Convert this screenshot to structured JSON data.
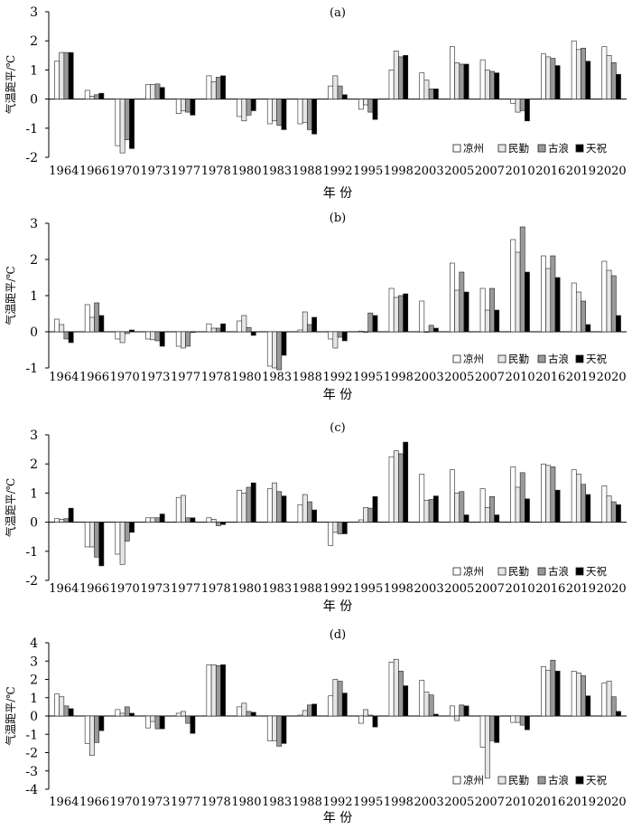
{
  "figure": {
    "xlabel": "年 份",
    "ylabel": "气温距平/℃"
  },
  "chart_data": [
    {
      "type": "bar",
      "title": "(a)",
      "xlabel": "年 份",
      "ylabel": "气温距平/℃",
      "ylim": [
        -2,
        3
      ],
      "yticks": [
        -2,
        -1,
        0,
        1,
        2,
        3
      ],
      "legend": "bottom-right",
      "categories": [
        "1964",
        "1966",
        "1970",
        "1973",
        "1977",
        "1978",
        "1980",
        "1983",
        "1988",
        "1992",
        "1995",
        "1998",
        "2003",
        "2005",
        "2007",
        "2010",
        "2016",
        "2019",
        "2020"
      ],
      "series": [
        {
          "name": "凉州",
          "fill": "#ffffff",
          "values": [
            1.3,
            0.3,
            -1.6,
            0.5,
            -0.5,
            0.8,
            -0.6,
            -0.85,
            -0.85,
            0.45,
            -0.35,
            1.0,
            0.9,
            1.8,
            1.35,
            -0.15,
            1.55,
            2.0,
            1.8
          ]
        },
        {
          "name": "民勤",
          "fill": "#e6e6e6",
          "values": [
            1.6,
            0.1,
            -1.85,
            0.5,
            -0.4,
            0.6,
            -0.75,
            -0.75,
            -0.8,
            0.8,
            -0.2,
            1.65,
            0.65,
            1.25,
            1.0,
            -0.45,
            1.45,
            1.7,
            1.5
          ]
        },
        {
          "name": "古浪",
          "fill": "#999999",
          "values": [
            1.6,
            0.15,
            -1.4,
            0.52,
            -0.45,
            0.75,
            -0.55,
            -0.9,
            -1.05,
            0.45,
            -0.45,
            1.45,
            0.35,
            1.2,
            0.95,
            -0.4,
            1.4,
            1.75,
            1.25
          ]
        },
        {
          "name": "天祝",
          "fill": "#000000",
          "values": [
            1.6,
            0.2,
            -1.7,
            0.4,
            -0.55,
            0.8,
            -0.4,
            -1.05,
            -1.2,
            0.15,
            -0.7,
            1.5,
            0.35,
            1.2,
            0.9,
            -0.75,
            1.15,
            1.3,
            0.85
          ]
        }
      ]
    },
    {
      "type": "bar",
      "title": "(b)",
      "xlabel": "年 份",
      "ylabel": "气温距平/℃",
      "ylim": [
        -1,
        3
      ],
      "yticks": [
        -1,
        0,
        1,
        2,
        3
      ],
      "legend": "bottom-right",
      "categories": [
        "1964",
        "1966",
        "1970",
        "1973",
        "1977",
        "1978",
        "1980",
        "1983",
        "1988",
        "1992",
        "1995",
        "1998",
        "2003",
        "2005",
        "2007",
        "2010",
        "2016",
        "2019",
        "2020"
      ],
      "series": [
        {
          "name": "凉州",
          "fill": "#ffffff",
          "values": [
            0.35,
            0.75,
            -0.2,
            -0.2,
            -0.4,
            0.22,
            0.3,
            -0.95,
            0.05,
            -0.2,
            0.02,
            1.2,
            0.85,
            1.9,
            1.2,
            2.55,
            2.1,
            1.35,
            1.95
          ]
        },
        {
          "name": "民勤",
          "fill": "#e6e6e6",
          "values": [
            0.2,
            0.4,
            -0.3,
            -0.22,
            -0.45,
            0.1,
            0.45,
            -1.0,
            0.55,
            -0.45,
            0.0,
            0.95,
            0.0,
            1.15,
            0.6,
            2.2,
            1.75,
            1.1,
            1.7
          ]
        },
        {
          "name": "古浪",
          "fill": "#999999",
          "values": [
            -0.2,
            0.8,
            -0.05,
            -0.25,
            -0.4,
            0.1,
            0.12,
            -1.05,
            0.2,
            -0.15,
            0.52,
            1.0,
            0.18,
            1.65,
            1.2,
            2.9,
            2.1,
            0.85,
            1.55
          ]
        },
        {
          "name": "天祝",
          "fill": "#000000",
          "values": [
            -0.3,
            0.45,
            0.05,
            -0.4,
            -0.02,
            0.22,
            -0.1,
            -0.65,
            0.4,
            -0.25,
            0.45,
            1.05,
            0.1,
            1.1,
            0.6,
            1.65,
            1.5,
            0.2,
            0.45
          ]
        }
      ]
    },
    {
      "type": "bar",
      "title": "(c)",
      "xlabel": "年 份",
      "ylabel": "气温距平/℃",
      "ylim": [
        -2,
        3
      ],
      "yticks": [
        -2,
        -1,
        0,
        1,
        2,
        3
      ],
      "legend": "bottom-right",
      "categories": [
        "1964",
        "1966",
        "1970",
        "1973",
        "1977",
        "1978",
        "1980",
        "1983",
        "1988",
        "1992",
        "1995",
        "1998",
        "2003",
        "2005",
        "2007",
        "2010",
        "2016",
        "2019",
        "2020"
      ],
      "series": [
        {
          "name": "凉州",
          "fill": "#ffffff",
          "values": [
            0.12,
            -0.85,
            -1.1,
            0.15,
            0.85,
            0.15,
            1.1,
            1.15,
            0.6,
            -0.8,
            0.08,
            2.25,
            1.65,
            1.8,
            1.15,
            1.9,
            2.0,
            1.8,
            1.25
          ]
        },
        {
          "name": "民勤",
          "fill": "#e6e6e6",
          "values": [
            0.1,
            -0.85,
            -1.45,
            0.15,
            0.92,
            0.1,
            1.0,
            1.35,
            0.95,
            -0.35,
            0.5,
            2.45,
            0.75,
            1.0,
            0.5,
            1.2,
            1.95,
            1.65,
            0.9
          ]
        },
        {
          "name": "古浪",
          "fill": "#999999",
          "values": [
            0.12,
            -1.2,
            -0.65,
            0.15,
            0.15,
            -0.12,
            1.2,
            1.05,
            0.7,
            -0.4,
            0.48,
            2.35,
            0.78,
            1.05,
            0.88,
            1.7,
            1.9,
            1.3,
            0.7
          ]
        },
        {
          "name": "天祝",
          "fill": "#000000",
          "values": [
            0.48,
            -1.5,
            -0.35,
            0.28,
            0.15,
            -0.08,
            1.35,
            0.9,
            0.42,
            -0.4,
            0.88,
            2.75,
            0.9,
            0.25,
            0.25,
            0.8,
            1.1,
            0.95,
            0.6
          ]
        }
      ]
    },
    {
      "type": "bar",
      "title": "(d)",
      "xlabel": "年 份",
      "ylabel": "气温距平/℃",
      "ylim": [
        -4,
        4
      ],
      "yticks": [
        -4,
        -3,
        -2,
        -1,
        0,
        1,
        2,
        3,
        4
      ],
      "legend": "bottom-right",
      "categories": [
        "1964",
        "1966",
        "1970",
        "1973",
        "1977",
        "1978",
        "1980",
        "1983",
        "1988",
        "1992",
        "1995",
        "1998",
        "2003",
        "2005",
        "2007",
        "2010",
        "2016",
        "2019",
        "2020"
      ],
      "series": [
        {
          "name": "凉州",
          "fill": "#ffffff",
          "values": [
            1.2,
            -1.5,
            0.35,
            -0.65,
            0.15,
            2.8,
            0.5,
            -1.35,
            0.05,
            1.1,
            -0.4,
            2.95,
            1.95,
            0.55,
            -1.7,
            -0.35,
            2.7,
            2.45,
            1.8
          ]
        },
        {
          "name": "民勤",
          "fill": "#e6e6e6",
          "values": [
            1.05,
            -2.15,
            0.15,
            -0.3,
            0.25,
            2.8,
            0.7,
            -1.35,
            0.3,
            2.0,
            0.35,
            3.1,
            1.3,
            -0.25,
            -3.4,
            -0.35,
            2.5,
            2.35,
            1.9
          ]
        },
        {
          "name": "古浪",
          "fill": "#999999",
          "values": [
            0.55,
            -1.45,
            0.5,
            -0.7,
            -0.4,
            2.75,
            0.25,
            -1.65,
            0.6,
            1.9,
            0.05,
            2.45,
            1.15,
            0.6,
            -1.35,
            -0.5,
            3.05,
            2.2,
            1.05
          ]
        },
        {
          "name": "天祝",
          "fill": "#000000",
          "values": [
            0.4,
            -0.8,
            0.15,
            -0.7,
            -0.95,
            2.8,
            0.2,
            -1.5,
            0.65,
            1.25,
            -0.6,
            1.65,
            0.1,
            0.55,
            -1.45,
            -0.75,
            2.45,
            1.1,
            0.25
          ]
        }
      ]
    }
  ]
}
